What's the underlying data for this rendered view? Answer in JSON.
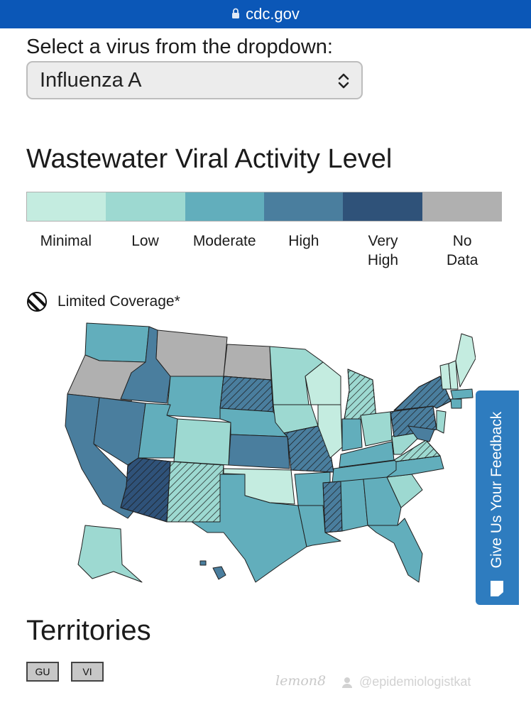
{
  "browser": {
    "url": "cdc.gov"
  },
  "selector": {
    "prompt": "Select a virus from the dropdown:",
    "value": "Influenza A"
  },
  "chart": {
    "title": "Wastewater Viral Activity Level"
  },
  "legend": [
    {
      "label": "Minimal",
      "color": "#c4ece0"
    },
    {
      "label": "Low",
      "color": "#9dd9d1"
    },
    {
      "label": "Moderate",
      "color": "#62aebc"
    },
    {
      "label": "High",
      "color": "#4a7e9e"
    },
    {
      "label": "Very\nHigh",
      "color": "#2f5279"
    },
    {
      "label": "No\nData",
      "color": "#b0b0b0"
    }
  ],
  "coverage_label": "Limited Coverage*",
  "feedback_label": "Give Us Your Feedback",
  "territories": {
    "title": "Territories",
    "items": [
      "GU",
      "VI"
    ]
  },
  "watermark": {
    "app": "lemon8",
    "handle": "@epidemiologistkat"
  }
}
